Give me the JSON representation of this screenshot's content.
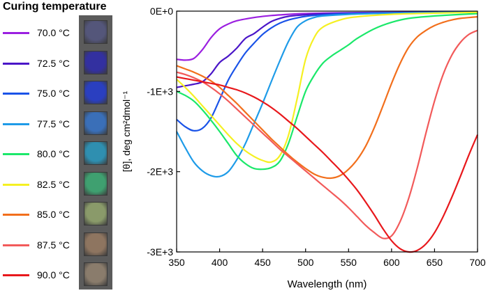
{
  "legend": {
    "title": "Curing temperature",
    "entries": [
      {
        "label": "70.0 °C",
        "color": "#9b1fe0"
      },
      {
        "label": "72.5 °C",
        "color": "#4a16c8"
      },
      {
        "label": "75.0 °C",
        "color": "#1a53e8"
      },
      {
        "label": "77.5 °C",
        "color": "#1e9be8"
      },
      {
        "label": "80.0 °C",
        "color": "#1be86a"
      },
      {
        "label": "82.5 °C",
        "color": "#f5f022"
      },
      {
        "label": "85.0 °C",
        "color": "#f26f1c"
      },
      {
        "label": "87.5 °C",
        "color": "#f25a5a"
      },
      {
        "label": "90.0 °C",
        "color": "#e8181c"
      }
    ]
  },
  "sample_photos": {
    "colors": [
      "#54567a",
      "#3330a0",
      "#2a3fc0",
      "#3a6fb8",
      "#2f8fb0",
      "#3fa070",
      "#8a9a6a",
      "#8e7560",
      "#8a7c6c"
    ]
  },
  "chart_data": {
    "type": "line",
    "title": "",
    "xlabel": "Wavelength (nm)",
    "ylabel": "[θ], deg cm²dmol⁻¹",
    "xlim": [
      350,
      700
    ],
    "ylim": [
      -3000,
      0
    ],
    "xticks": [
      350,
      400,
      450,
      500,
      550,
      600,
      650,
      700
    ],
    "yticks": [
      {
        "value": 0,
        "label": "0E+0"
      },
      {
        "value": -1000,
        "label": "-1E+3"
      },
      {
        "value": -2000,
        "label": "-2E+3"
      },
      {
        "value": -3000,
        "label": "-3E+3"
      }
    ],
    "series": [
      {
        "name": "70.0 °C",
        "color": "#9b1fe0",
        "x": [
          350,
          360,
          370,
          380,
          390,
          400,
          410,
          420,
          440,
          460,
          480,
          500,
          520,
          550,
          600,
          650,
          700
        ],
        "y": [
          -600,
          -610,
          -590,
          -480,
          -330,
          -220,
          -160,
          -120,
          -80,
          -55,
          -40,
          -30,
          -25,
          -20,
          -15,
          -12,
          -10
        ]
      },
      {
        "name": "72.5 °C",
        "color": "#4a16c8",
        "x": [
          350,
          360,
          370,
          380,
          390,
          400,
          410,
          420,
          430,
          440,
          450,
          460,
          470,
          480,
          500,
          520,
          550,
          600,
          650,
          700
        ],
        "y": [
          -950,
          -930,
          -910,
          -880,
          -780,
          -640,
          -560,
          -460,
          -340,
          -280,
          -200,
          -130,
          -90,
          -65,
          -45,
          -35,
          -25,
          -18,
          -14,
          -10
        ]
      },
      {
        "name": "75.0 °C",
        "color": "#1a53e8",
        "x": [
          350,
          360,
          370,
          380,
          390,
          400,
          410,
          420,
          430,
          440,
          450,
          460,
          470,
          480,
          490,
          500,
          520,
          550,
          600,
          650,
          700
        ],
        "y": [
          -1350,
          -1440,
          -1490,
          -1460,
          -1330,
          -1100,
          -860,
          -680,
          -520,
          -400,
          -290,
          -210,
          -150,
          -110,
          -85,
          -65,
          -45,
          -30,
          -20,
          -15,
          -10
        ]
      },
      {
        "name": "77.5 °C",
        "color": "#1e9be8",
        "x": [
          350,
          360,
          370,
          380,
          390,
          400,
          410,
          420,
          430,
          440,
          450,
          460,
          470,
          480,
          490,
          500,
          510,
          520,
          550,
          600,
          650,
          700
        ],
        "y": [
          -1500,
          -1700,
          -1880,
          -1990,
          -2050,
          -2060,
          -2000,
          -1850,
          -1650,
          -1400,
          -1150,
          -880,
          -620,
          -380,
          -200,
          -120,
          -80,
          -60,
          -40,
          -25,
          -18,
          -12
        ]
      },
      {
        "name": "80.0 °C",
        "color": "#1be86a",
        "x": [
          350,
          360,
          370,
          380,
          390,
          400,
          410,
          420,
          430,
          440,
          450,
          460,
          470,
          480,
          490,
          500,
          510,
          520,
          530,
          540,
          550,
          560,
          580,
          600,
          620,
          650,
          700
        ],
        "y": [
          -1000,
          -1050,
          -1120,
          -1230,
          -1360,
          -1500,
          -1650,
          -1800,
          -1900,
          -1960,
          -1970,
          -1950,
          -1870,
          -1650,
          -1320,
          -1000,
          -800,
          -650,
          -560,
          -490,
          -420,
          -340,
          -220,
          -140,
          -90,
          -60,
          -30
        ]
      },
      {
        "name": "82.5 °C",
        "color": "#f5f022",
        "x": [
          350,
          360,
          370,
          380,
          390,
          400,
          410,
          420,
          430,
          440,
          450,
          460,
          470,
          480,
          490,
          500,
          510,
          520,
          540,
          560,
          600,
          650,
          700
        ],
        "y": [
          -850,
          -950,
          -1060,
          -1180,
          -1300,
          -1420,
          -1540,
          -1650,
          -1740,
          -1810,
          -1860,
          -1880,
          -1800,
          -1550,
          -1100,
          -600,
          -330,
          -200,
          -110,
          -70,
          -40,
          -25,
          -15
        ]
      },
      {
        "name": "85.0 °C",
        "color": "#f26f1c",
        "x": [
          350,
          360,
          370,
          380,
          390,
          400,
          410,
          420,
          430,
          440,
          450,
          460,
          470,
          480,
          490,
          500,
          510,
          520,
          530,
          540,
          550,
          560,
          570,
          580,
          590,
          600,
          610,
          620,
          630,
          640,
          650,
          660,
          670,
          680,
          690,
          700
        ],
        "y": [
          -680,
          -720,
          -760,
          -810,
          -870,
          -950,
          -1050,
          -1150,
          -1260,
          -1370,
          -1480,
          -1590,
          -1690,
          -1790,
          -1880,
          -1960,
          -2030,
          -2070,
          -2080,
          -2050,
          -1970,
          -1850,
          -1680,
          -1450,
          -1180,
          -900,
          -650,
          -450,
          -320,
          -240,
          -180,
          -140,
          -110,
          -90,
          -80,
          -70
        ]
      },
      {
        "name": "87.5 °C",
        "color": "#f25a5a",
        "x": [
          350,
          360,
          370,
          380,
          390,
          400,
          410,
          420,
          430,
          440,
          450,
          460,
          470,
          480,
          490,
          500,
          510,
          520,
          530,
          540,
          550,
          560,
          570,
          580,
          590,
          600,
          610,
          620,
          630,
          640,
          650,
          660,
          670,
          680,
          690,
          700
        ],
        "y": [
          -760,
          -790,
          -830,
          -880,
          -950,
          -1030,
          -1120,
          -1220,
          -1320,
          -1420,
          -1520,
          -1620,
          -1720,
          -1810,
          -1900,
          -1990,
          -2080,
          -2170,
          -2260,
          -2350,
          -2450,
          -2560,
          -2670,
          -2760,
          -2830,
          -2800,
          -2620,
          -2330,
          -1950,
          -1520,
          -1120,
          -790,
          -550,
          -390,
          -290,
          -240
        ]
      },
      {
        "name": "90.0 °C",
        "color": "#e8181c",
        "x": [
          350,
          360,
          370,
          380,
          390,
          400,
          410,
          420,
          430,
          440,
          450,
          460,
          470,
          480,
          490,
          500,
          510,
          520,
          530,
          540,
          550,
          560,
          570,
          580,
          590,
          600,
          610,
          620,
          630,
          640,
          650,
          660,
          670,
          680,
          690,
          700
        ],
        "y": [
          -820,
          -840,
          -860,
          -880,
          -900,
          -920,
          -950,
          -980,
          -1020,
          -1070,
          -1130,
          -1200,
          -1280,
          -1370,
          -1460,
          -1560,
          -1660,
          -1760,
          -1870,
          -1980,
          -2100,
          -2230,
          -2380,
          -2540,
          -2710,
          -2860,
          -2960,
          -3000,
          -2980,
          -2900,
          -2760,
          -2560,
          -2320,
          -2060,
          -1790,
          -1540
        ]
      }
    ]
  }
}
